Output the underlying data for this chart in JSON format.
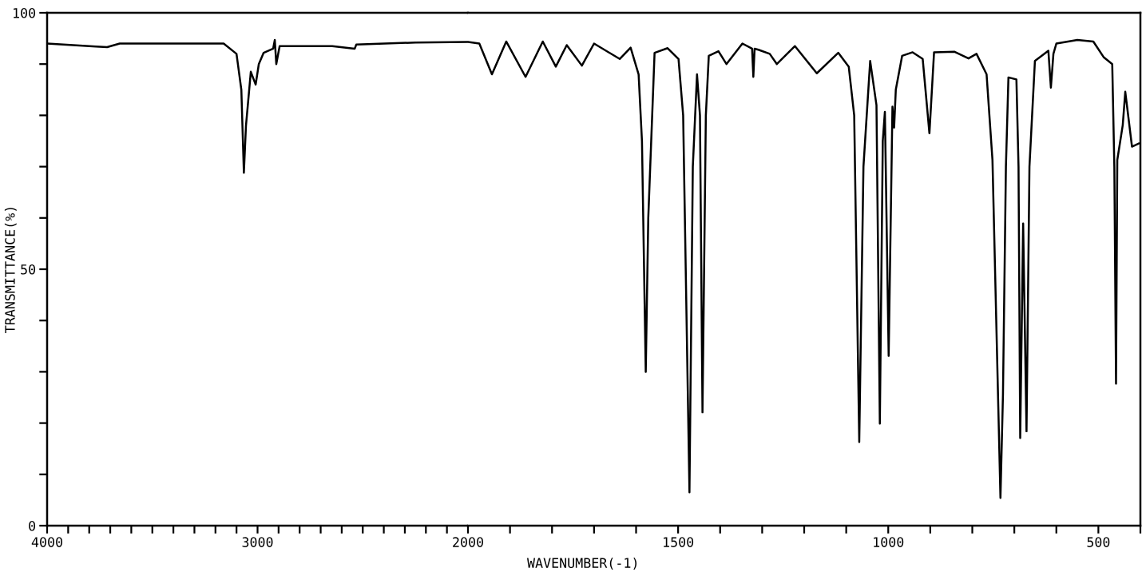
{
  "chart_data": [
    {
      "type": "line",
      "ylabel": "TRANSMITTANCE(%)",
      "xlim": [
        4000,
        2000
      ],
      "ylim": [
        0,
        100
      ],
      "tick_labels": true,
      "xticks": [
        4000,
        {
          "value": 3900,
          "label": null
        },
        {
          "value": 3800,
          "label": null
        },
        {
          "value": 3700,
          "label": null
        },
        {
          "value": 3600,
          "label": null
        },
        {
          "value": 3500,
          "label": null
        },
        {
          "value": 3400,
          "label": null
        },
        {
          "value": 3300,
          "label": null
        },
        {
          "value": 3200,
          "label": null
        },
        {
          "value": 3100,
          "label": null
        },
        3000,
        {
          "value": 2900,
          "label": null
        },
        {
          "value": 2800,
          "label": null
        },
        {
          "value": 2700,
          "label": null
        },
        {
          "value": 2600,
          "label": null
        },
        {
          "value": 2500,
          "label": null
        },
        {
          "value": 2400,
          "label": null
        },
        {
          "value": 2300,
          "label": null
        },
        {
          "value": 2200,
          "label": null
        },
        {
          "value": 2100,
          "label": null
        },
        2000
      ],
      "yticks": [
        0,
        {
          "value": 10,
          "label": null
        },
        {
          "value": 20,
          "label": null
        },
        {
          "value": 30,
          "label": null
        },
        {
          "value": 40,
          "label": null
        },
        50,
        {
          "value": 60,
          "label": null
        },
        {
          "value": 70,
          "label": null
        },
        {
          "value": 80,
          "label": null
        },
        {
          "value": 90,
          "label": null
        },
        100
      ],
      "grid": false,
      "marker": "none",
      "line_style": "solid",
      "series": [
        {
          "color": "#000000",
          "x": [
            4000,
            3768,
            3715,
            3655,
            3161,
            3100,
            3077,
            3065,
            3055,
            3032,
            3009,
            2994,
            2971,
            2926,
            2918,
            2911,
            2895,
            2645,
            2538,
            2531,
            2250,
            2000
          ],
          "values": [
            94,
            93.4,
            93.3,
            94,
            94,
            92,
            85,
            68.8,
            78,
            88.5,
            86,
            90,
            92.2,
            93,
            94.7,
            90,
            93.5,
            93.5,
            93.0,
            93.8,
            94.2,
            94.3
          ]
        }
      ]
    },
    {
      "type": "line",
      "xlabel": "WAVENUMBER(-1)",
      "xlim": [
        2000,
        400
      ],
      "ylim": [
        0,
        100
      ],
      "tick_labels": "x",
      "xticks": [
        {
          "value": 1900,
          "label": null
        },
        {
          "value": 1800,
          "label": null
        },
        {
          "value": 1700,
          "label": null
        },
        {
          "value": 1600,
          "label": null
        },
        1500,
        {
          "value": 1400,
          "label": null
        },
        {
          "value": 1300,
          "label": null
        },
        {
          "value": 1200,
          "label": null
        },
        {
          "value": 1100,
          "label": null
        },
        1000,
        {
          "value": 900,
          "label": null
        },
        {
          "value": 800,
          "label": null
        },
        {
          "value": 700,
          "label": null
        },
        {
          "value": 600,
          "label": null
        },
        500,
        {
          "value": 400,
          "label": null
        }
      ],
      "grid": false,
      "marker": "none",
      "line_style": "solid",
      "series": [
        {
          "color": "#000000",
          "x": [
            2000,
            1973,
            1943,
            1909,
            1863,
            1822,
            1791,
            1765,
            1729,
            1700,
            1639,
            1613,
            1594,
            1586,
            1577,
            1571,
            1556,
            1525,
            1499,
            1488,
            1473,
            1465,
            1455,
            1448,
            1442,
            1434,
            1427,
            1404,
            1385,
            1347,
            1324,
            1321,
            1318,
            1309,
            1282,
            1265,
            1222,
            1170,
            1119,
            1094,
            1081,
            1069,
            1059,
            1043,
            1028,
            1020,
            1013,
            1008,
            999,
            990,
            986,
            982,
            967,
            942,
            918,
            902,
            891,
            842,
            809,
            790,
            766,
            752,
            743,
            733,
            727,
            720,
            714,
            695,
            690,
            686,
            679,
            671,
            664,
            651,
            619,
            613,
            607,
            600,
            550,
            512,
            487,
            467,
            462,
            458,
            455,
            442,
            436,
            420,
            404
          ],
          "values": [
            94.3,
            94,
            88,
            94.4,
            87.5,
            94.4,
            89.5,
            93.7,
            89.7,
            94,
            91,
            93.2,
            88,
            75,
            30,
            60,
            92.2,
            93.1,
            91,
            80,
            6.5,
            70,
            88,
            80,
            22.1,
            80,
            91.6,
            92.5,
            90,
            94,
            93,
            87.5,
            93,
            92.8,
            92,
            90,
            93.5,
            88.2,
            92.2,
            89.5,
            80,
            16.3,
            70,
            90.6,
            82,
            19.9,
            75,
            80.7,
            33.1,
            81.7,
            77.6,
            85,
            91.6,
            92.3,
            91,
            76.5,
            92.3,
            92.4,
            91.1,
            92,
            88,
            71.3,
            40,
            5.4,
            25.6,
            70,
            87.4,
            87,
            70,
            17.1,
            58.9,
            18.4,
            70,
            90.6,
            92.6,
            85.4,
            92,
            94,
            94.7,
            94.4,
            91.3,
            90,
            70,
            27.7,
            71.3,
            78.1,
            84.6,
            73.9,
            74.5
          ]
        }
      ]
    }
  ]
}
